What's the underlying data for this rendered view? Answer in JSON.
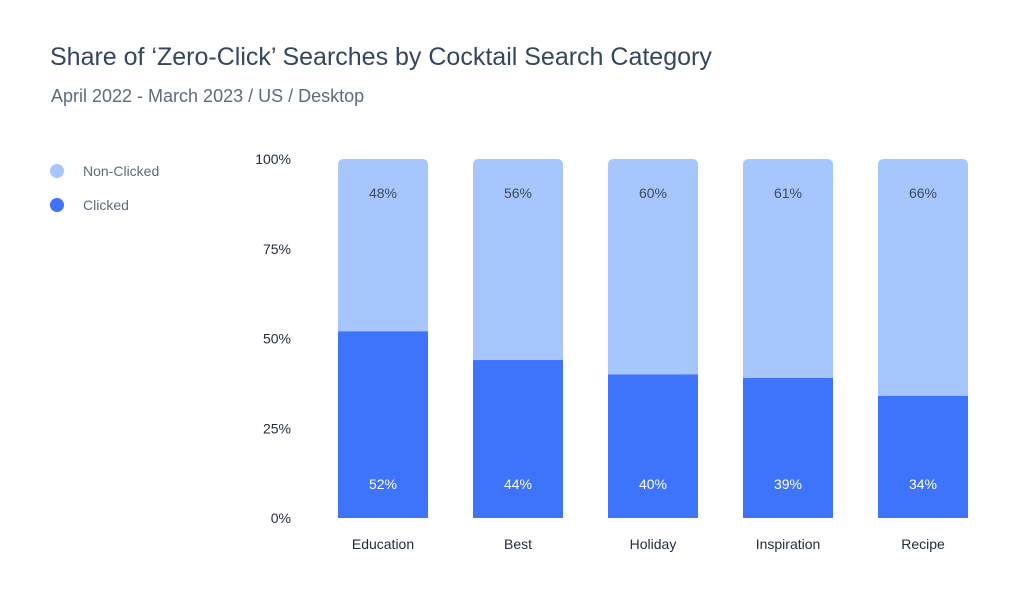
{
  "chart_data": {
    "type": "bar",
    "stacked": true,
    "title": "Share of ‘Zero-Click’ Searches by Cocktail Search Category",
    "subtitle": "April 2022 - March 2023 / US / Desktop",
    "categories": [
      "Education",
      "Best",
      "Holiday",
      "Inspiration",
      "Recipe"
    ],
    "series": [
      {
        "name": "Clicked",
        "values": [
          52,
          44,
          40,
          39,
          34
        ],
        "labels": [
          "52%",
          "44%",
          "40%",
          "39%",
          "34%"
        ],
        "color": "#3e74fc",
        "label_color": "#ffffff"
      },
      {
        "name": "Non-Clicked",
        "values": [
          48,
          56,
          60,
          61,
          66
        ],
        "labels": [
          "48%",
          "56%",
          "60%",
          "61%",
          "66%"
        ],
        "color": "#a8c6fe",
        "label_color": "#3b4a63"
      }
    ],
    "y_ticks": [
      {
        "value": 100,
        "label": "100%"
      },
      {
        "value": 75,
        "label": "75%"
      },
      {
        "value": 50,
        "label": "50%"
      },
      {
        "value": 25,
        "label": "25%"
      },
      {
        "value": 0,
        "label": "0%"
      }
    ],
    "ylim": [
      0,
      100
    ],
    "xlabel": "",
    "ylabel": "",
    "grid": false,
    "legend_position": "top-left"
  },
  "legend": {
    "items": [
      {
        "label": "Non-Clicked",
        "color": "#a8c6fe"
      },
      {
        "label": "Clicked",
        "color": "#3e74fc"
      }
    ]
  }
}
